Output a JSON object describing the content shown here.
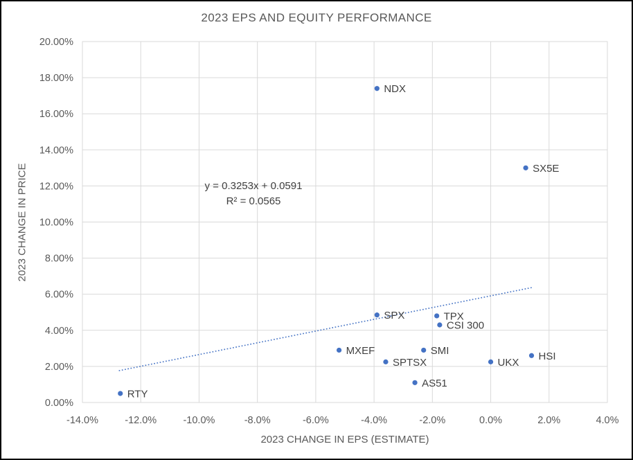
{
  "chart_data": {
    "type": "scatter",
    "title": "2023 EPS AND EQUITY PERFORMANCE",
    "xlabel": "2023 CHANGE IN EPS (ESTIMATE)",
    "ylabel": "2023 CHANGE IN PRICE",
    "xlim": [
      -14,
      4
    ],
    "ylim": [
      0,
      20
    ],
    "grid": true,
    "x_tick_values": [
      -14,
      -12,
      -10,
      -8,
      -6,
      -4,
      -2,
      0,
      2,
      4
    ],
    "x_tick_labels": [
      "-14.0%",
      "-12.0%",
      "-10.0%",
      "-8.0%",
      "-6.0%",
      "-4.0%",
      "-2.0%",
      "0.0%",
      "2.0%",
      "4.0%"
    ],
    "y_tick_values": [
      0,
      2,
      4,
      6,
      8,
      10,
      12,
      14,
      16,
      18,
      20
    ],
    "y_tick_labels": [
      "0.00%",
      "2.00%",
      "4.00%",
      "6.00%",
      "8.00%",
      "10.00%",
      "12.00%",
      "14.00%",
      "16.00%",
      "18.00%",
      "20.00%"
    ],
    "points": [
      {
        "label": "NDX",
        "x": -3.9,
        "y": 17.4
      },
      {
        "label": "SX5E",
        "x": 1.2,
        "y": 13.0
      },
      {
        "label": "SPX",
        "x": -3.9,
        "y": 4.85
      },
      {
        "label": "TPX",
        "x": -1.85,
        "y": 4.8
      },
      {
        "label": "CSI 300",
        "x": -1.75,
        "y": 4.3
      },
      {
        "label": "MXEF",
        "x": -5.2,
        "y": 2.9
      },
      {
        "label": "SMI",
        "x": -2.3,
        "y": 2.9
      },
      {
        "label": "SPTSX",
        "x": -3.6,
        "y": 2.25
      },
      {
        "label": "AS51",
        "x": -2.6,
        "y": 1.1
      },
      {
        "label": "UKX",
        "x": 0.0,
        "y": 2.25
      },
      {
        "label": "HSI",
        "x": 1.4,
        "y": 2.6
      },
      {
        "label": "RTY",
        "x": -12.7,
        "y": 0.5
      }
    ],
    "trendline": {
      "equation": "y = 0.3253x + 0.0591",
      "r_squared": "R² = 0.0565",
      "slope": 0.3253,
      "intercept": 0.0591,
      "x_start": -12.75,
      "x_end": 1.45,
      "style": "dotted"
    },
    "colors": {
      "point": "#4472C4",
      "trendline": "#4472C4",
      "gridline": "#D9D9D9",
      "plot_border": "#D9D9D9",
      "axis_text": "#595959",
      "label_text": "#404040",
      "title_text": "#595959"
    }
  }
}
